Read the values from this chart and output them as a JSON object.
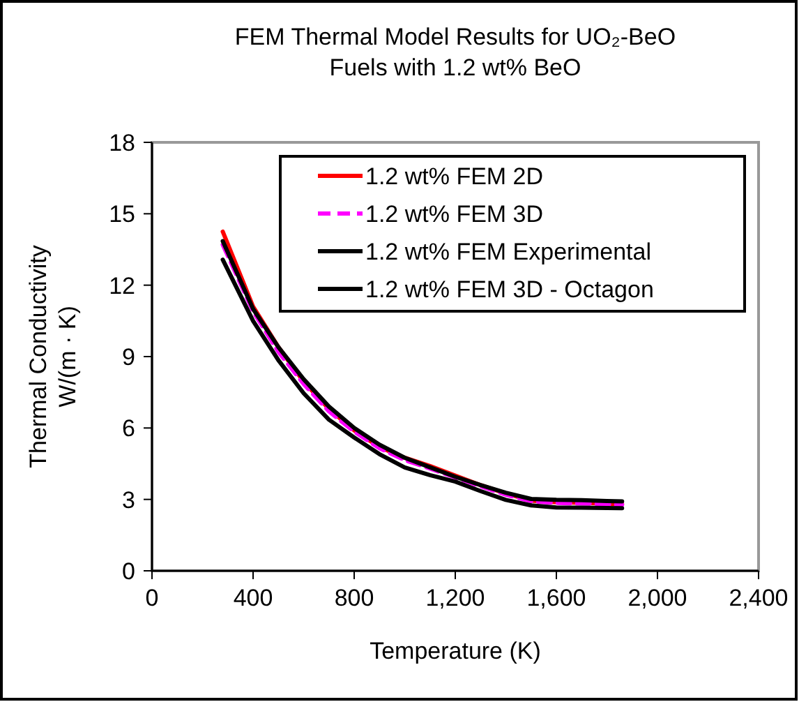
{
  "chart_data": {
    "type": "line",
    "title": "FEM Thermal Model Results for UO₂-BeO\nFuels with 1.2 wt% BeO",
    "xlabel": "Temperature (K)",
    "ylabel": "Thermal Conductivity\nW/(m · K)",
    "x": [
      280,
      400,
      500,
      600,
      700,
      800,
      900,
      1000,
      1100,
      1200,
      1300,
      1400,
      1500,
      1600,
      1700,
      1800,
      1860
    ],
    "series": [
      {
        "name": "1.2 wt% FEM 2D",
        "color": "#ff0000",
        "line_style": "solid",
        "values": [
          14.25,
          11.1,
          9.4,
          7.95,
          6.8,
          5.9,
          5.2,
          4.75,
          4.4,
          4.0,
          3.6,
          3.25,
          2.95,
          2.88,
          2.86,
          2.82,
          2.8
        ]
      },
      {
        "name": "1.2 wt% FEM 3D",
        "color": "#ff00ff",
        "line_style": "dashed",
        "values": [
          13.7,
          10.9,
          9.2,
          7.85,
          6.7,
          5.85,
          5.15,
          4.65,
          4.3,
          3.92,
          3.55,
          3.2,
          2.92,
          2.85,
          2.83,
          2.8,
          2.78
        ]
      },
      {
        "name": "1.2 wt% FEM Experimental",
        "color": "#000000",
        "line_style": "solid",
        "values": [
          13.85,
          11.0,
          9.4,
          8.05,
          6.9,
          6.0,
          5.3,
          4.75,
          4.35,
          3.95,
          3.6,
          3.28,
          3.02,
          2.98,
          2.97,
          2.93,
          2.92
        ]
      },
      {
        "name": "1.2 wt% FEM 3D - Octagon",
        "color": "#000000",
        "line_style": "solid",
        "values": [
          13.07,
          10.5,
          8.85,
          7.46,
          6.35,
          5.6,
          4.9,
          4.34,
          4.02,
          3.75,
          3.35,
          2.98,
          2.75,
          2.66,
          2.65,
          2.64,
          2.63
        ]
      }
    ],
    "xlim": [
      0,
      2400
    ],
    "xticks": [
      0,
      {
        "value": 400,
        "label": "400"
      },
      {
        "value": 800,
        "label": "800"
      },
      {
        "value": 1200,
        "label": "1,200"
      },
      {
        "value": 1600,
        "label": "1,600"
      },
      {
        "value": 2000,
        "label": "2,000"
      },
      {
        "value": 2400,
        "label": "2,400"
      }
    ],
    "ylim": [
      0,
      18
    ],
    "yticks": [
      0,
      3,
      6,
      9,
      12,
      15,
      18
    ],
    "grid": false,
    "legend": "top right",
    "marker": "none"
  }
}
